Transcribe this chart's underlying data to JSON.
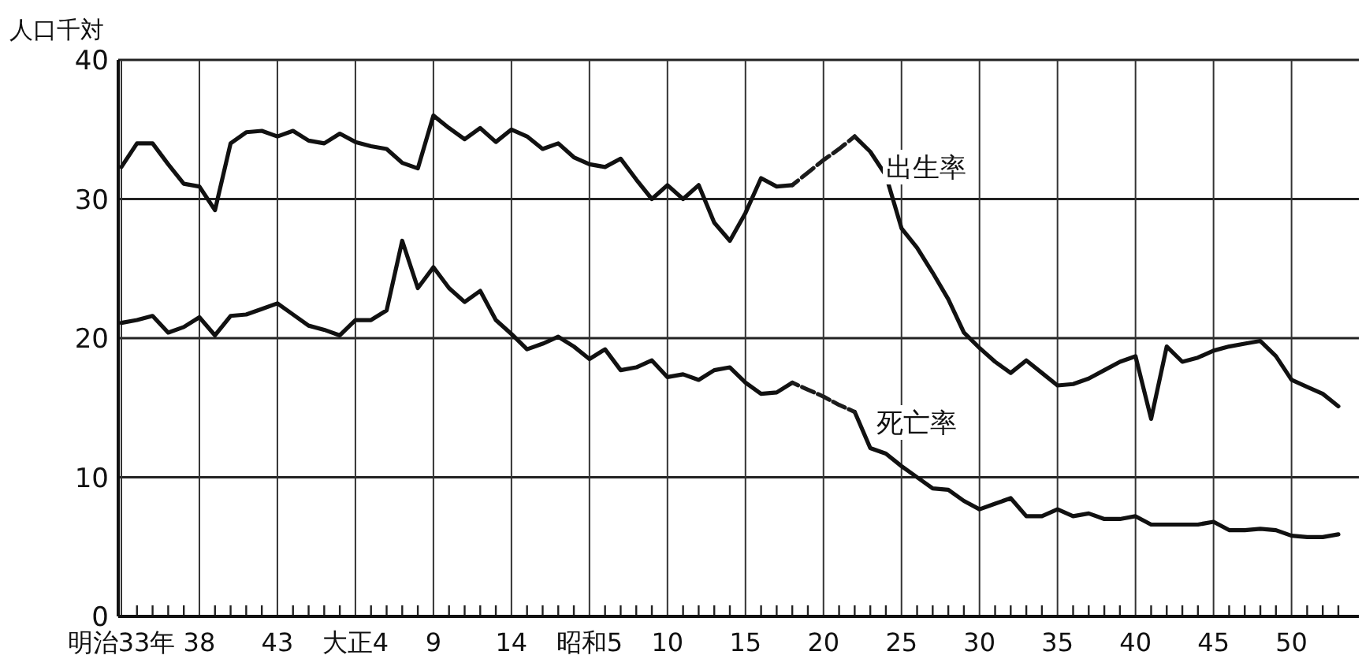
{
  "chart_data": {
    "type": "line",
    "ylabel": "人口千対",
    "categories": [
      "明治33年",
      null,
      null,
      null,
      null,
      "38",
      null,
      null,
      null,
      null,
      "43",
      null,
      null,
      null,
      null,
      "大正4",
      null,
      null,
      null,
      null,
      "9",
      null,
      null,
      null,
      null,
      "14",
      null,
      null,
      null,
      null,
      "昭和5",
      null,
      null,
      null,
      null,
      "10",
      null,
      null,
      null,
      null,
      "15",
      null,
      null,
      null,
      null,
      "20",
      null,
      null,
      null,
      null,
      "25",
      null,
      null,
      null,
      null,
      "30",
      null,
      null,
      null,
      null,
      "35",
      null,
      null,
      null,
      null,
      "40",
      null,
      null,
      null,
      null,
      "45",
      null,
      null,
      null,
      null,
      "50",
      null,
      null,
      null
    ],
    "series": [
      {
        "name": "出生率",
        "color": "#111111",
        "line_style": "solid",
        "values": [
          32.3,
          34.0,
          34.0,
          32.5,
          31.1,
          30.9,
          29.2,
          34.0,
          34.8,
          34.9,
          34.5,
          34.9,
          34.2,
          34.0,
          34.7,
          34.1,
          33.8,
          33.6,
          32.6,
          32.2,
          36.0,
          35.1,
          34.3,
          35.1,
          34.1,
          35.0,
          34.5,
          33.6,
          34.0,
          33.0,
          32.5,
          32.3,
          32.9,
          31.4,
          30.0,
          31.0,
          30.0,
          31.0,
          28.3,
          27.0,
          29.0,
          31.5,
          30.9,
          31.0,
          null,
          null,
          null,
          34.5,
          33.4,
          31.7,
          27.9,
          26.5,
          24.7,
          22.8,
          20.4,
          19.3,
          18.3,
          17.5,
          18.4,
          17.5,
          16.6,
          16.7,
          17.1,
          17.7,
          18.3,
          18.7,
          14.2,
          19.4,
          18.3,
          18.6,
          19.1,
          19.4,
          19.6,
          19.8,
          18.7,
          17.0,
          16.5,
          16.0,
          15.1
        ]
      },
      {
        "name": "死亡率",
        "color": "#111111",
        "line_style": "solid",
        "values": [
          21.1,
          21.3,
          21.6,
          20.4,
          20.8,
          21.5,
          20.2,
          21.6,
          21.7,
          22.1,
          22.5,
          21.7,
          20.9,
          20.6,
          20.2,
          21.3,
          21.3,
          22.0,
          27.0,
          23.6,
          25.1,
          23.6,
          22.6,
          23.4,
          21.3,
          20.3,
          19.2,
          19.6,
          20.1,
          19.4,
          18.5,
          19.2,
          17.7,
          17.9,
          18.4,
          17.2,
          17.4,
          17.0,
          17.7,
          17.9,
          16.8,
          16.0,
          16.1,
          16.8,
          null,
          null,
          null,
          14.7,
          12.1,
          11.7,
          10.8,
          10.0,
          9.2,
          9.1,
          8.3,
          7.7,
          8.1,
          8.5,
          7.2,
          7.2,
          7.7,
          7.2,
          7.4,
          7.0,
          7.0,
          7.2,
          6.6,
          6.6,
          6.6,
          6.6,
          6.8,
          6.2,
          6.2,
          6.3,
          6.2,
          5.8,
          5.7,
          5.7,
          5.9
        ]
      },
      {
        "color": "#1c1c1c",
        "line_style": "dashed",
        "values": [
          null,
          null,
          null,
          null,
          null,
          null,
          null,
          null,
          null,
          null,
          null,
          null,
          null,
          null,
          null,
          null,
          null,
          null,
          null,
          null,
          null,
          null,
          null,
          null,
          null,
          null,
          null,
          null,
          null,
          null,
          null,
          null,
          null,
          null,
          null,
          null,
          null,
          null,
          null,
          null,
          null,
          null,
          null,
          31.0,
          31.9,
          32.8,
          33.6,
          34.5,
          null,
          null,
          null,
          null,
          null,
          null,
          null,
          null,
          null,
          null,
          null,
          null,
          null,
          null,
          null,
          null,
          null,
          null,
          null,
          null,
          null,
          null,
          null,
          null,
          null,
          null,
          null,
          null,
          null,
          null,
          null
        ]
      },
      {
        "color": "#1c1c1c",
        "line_style": "dashed",
        "values": [
          null,
          null,
          null,
          null,
          null,
          null,
          null,
          null,
          null,
          null,
          null,
          null,
          null,
          null,
          null,
          null,
          null,
          null,
          null,
          null,
          null,
          null,
          null,
          null,
          null,
          null,
          null,
          null,
          null,
          null,
          null,
          null,
          null,
          null,
          null,
          null,
          null,
          null,
          null,
          null,
          null,
          null,
          null,
          16.8,
          16.3,
          15.8,
          15.2,
          14.7,
          null,
          null,
          null,
          null,
          null,
          null,
          null,
          null,
          null,
          null,
          null,
          null,
          null,
          null,
          null,
          null,
          null,
          null,
          null,
          null,
          null,
          null,
          null,
          null,
          null,
          null,
          null,
          null,
          null,
          null,
          null
        ]
      }
    ],
    "ylim": [
      0,
      40
    ],
    "yticks": [
      0,
      10,
      20,
      30,
      40
    ],
    "grid": true,
    "legend": false,
    "marker": "none"
  }
}
